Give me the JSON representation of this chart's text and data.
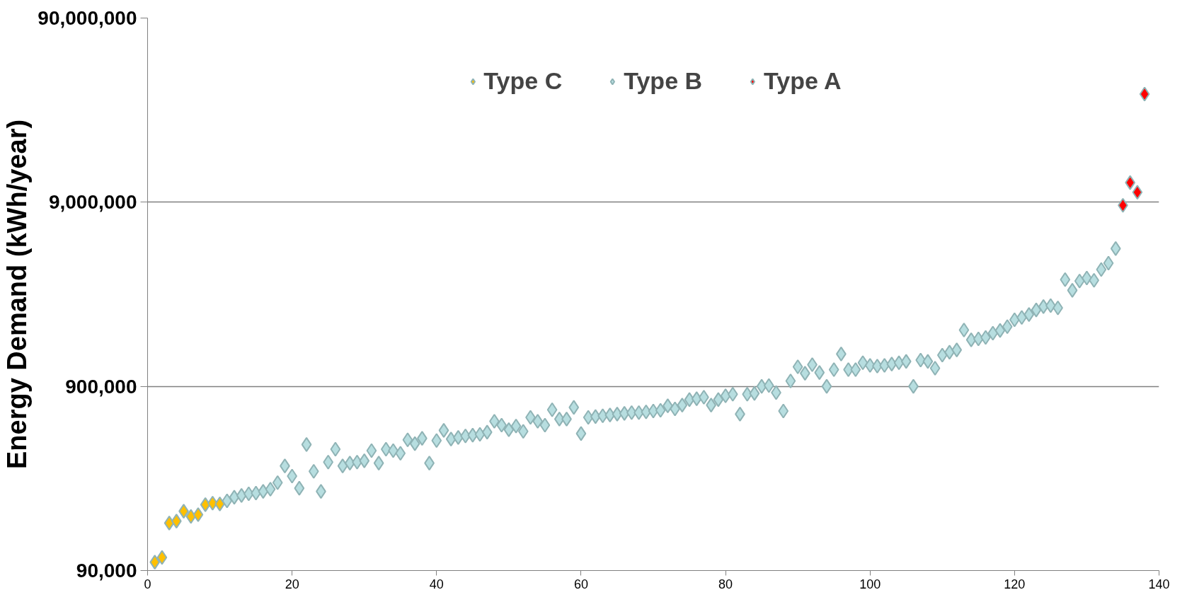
{
  "chart_data": {
    "type": "scatter",
    "ylabel": "Energy Demand (kWh/year)",
    "log": "y",
    "grid": "y",
    "legend": "top",
    "marker": "diamond",
    "xlim": [
      0,
      140
    ],
    "xticks": [
      0,
      20,
      40,
      60,
      80,
      100,
      120,
      140
    ],
    "ylim": [
      90000,
      90000000
    ],
    "yticks": [
      {
        "value": 90000,
        "label": "90,000"
      },
      {
        "value": 900000,
        "label": "900,000"
      },
      {
        "value": 9000000,
        "label": "9,000,000"
      },
      {
        "value": 90000000,
        "label": "90,000,000"
      }
    ],
    "series": [
      {
        "name": "Type C",
        "color": "#ffc000",
        "x": [
          1,
          2,
          3,
          4,
          5,
          6,
          7,
          8,
          9,
          10
        ],
        "values": [
          100000,
          106000,
          163000,
          167000,
          189000,
          177000,
          181000,
          205000,
          209000,
          207000
        ]
      },
      {
        "name": "Type B",
        "color": "#b7dee0",
        "x": [
          11,
          12,
          13,
          14,
          15,
          16,
          17,
          18,
          19,
          20,
          21,
          22,
          23,
          24,
          25,
          26,
          27,
          28,
          29,
          30,
          31,
          32,
          33,
          34,
          35,
          36,
          37,
          38,
          39,
          40,
          41,
          42,
          43,
          44,
          45,
          46,
          47,
          48,
          49,
          50,
          51,
          52,
          53,
          54,
          55,
          56,
          57,
          58,
          59,
          60,
          61,
          62,
          63,
          64,
          65,
          66,
          67,
          68,
          69,
          70,
          71,
          72,
          73,
          74,
          75,
          76,
          77,
          78,
          79,
          80,
          81,
          82,
          83,
          84,
          85,
          86,
          87,
          88,
          89,
          90,
          91,
          92,
          93,
          94,
          95,
          96,
          97,
          98,
          99,
          100,
          101,
          102,
          103,
          104,
          105,
          106,
          107,
          108,
          109,
          110,
          111,
          112,
          113,
          114,
          115,
          116,
          117,
          118,
          119,
          120,
          121,
          122,
          123,
          124,
          125,
          126,
          127,
          128,
          129,
          130,
          131,
          132,
          133,
          134
        ],
        "values": [
          215000,
          225000,
          230000,
          235000,
          237000,
          242000,
          249000,
          270000,
          333000,
          293000,
          252000,
          435000,
          311000,
          242000,
          349000,
          410000,
          333000,
          345000,
          349000,
          355000,
          403000,
          345000,
          410000,
          403000,
          390000,
          461000,
          440000,
          470000,
          345000,
          457000,
          519000,
          466000,
          475000,
          484000,
          489000,
          494000,
          508000,
          582000,
          554000,
          524000,
          548000,
          513000,
          611000,
          582000,
          554000,
          672000,
          598000,
          598000,
          692000,
          499000,
          611000,
          617000,
          623000,
          629000,
          636000,
          642000,
          648000,
          648000,
          654000,
          661000,
          667000,
          706000,
          679000,
          712000,
          763000,
          771000,
          786000,
          712000,
          763000,
          800000,
          816000,
          636000,
          816000,
          824000,
          900000,
          909000,
          832000,
          661000,
          963000,
          1150000,
          1060000,
          1180000,
          1070000,
          900000,
          1110000,
          1350000,
          1110000,
          1110000,
          1210000,
          1170000,
          1160000,
          1170000,
          1190000,
          1210000,
          1230000,
          900000,
          1250000,
          1230000,
          1130000,
          1330000,
          1380000,
          1420000,
          1820000,
          1610000,
          1630000,
          1660000,
          1750000,
          1810000,
          1900000,
          2070000,
          2130000,
          2210000,
          2340000,
          2440000,
          2470000,
          2400000,
          3420000,
          2990000,
          3360000,
          3490000,
          3390000,
          3880000,
          4200000,
          5040000
        ]
      },
      {
        "name": "Type A",
        "color": "#ff0000",
        "x": [
          135,
          136,
          137,
          138
        ],
        "values": [
          8650000,
          11500000,
          10200000,
          34800000
        ]
      }
    ]
  }
}
